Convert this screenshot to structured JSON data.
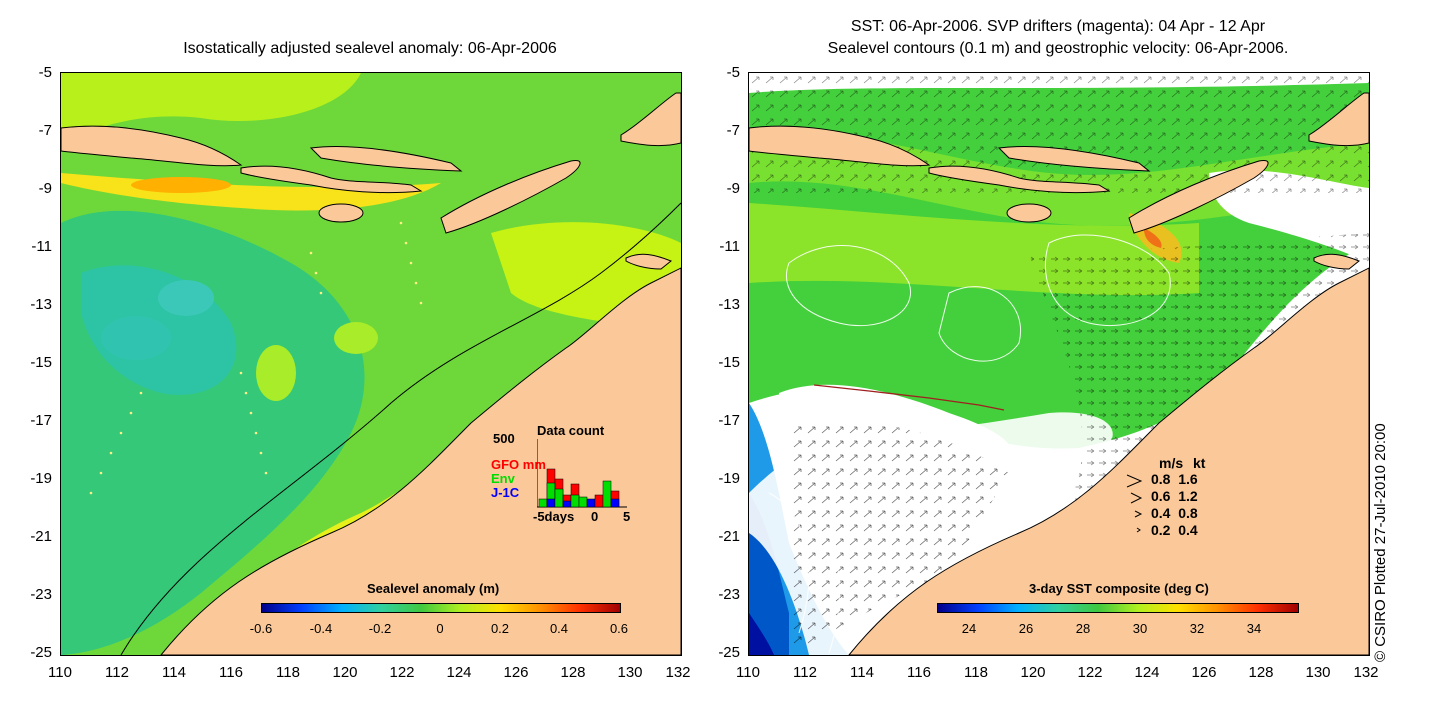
{
  "left_panel": {
    "title": "Isostatically adjusted sealevel anomaly: 06-Apr-2006",
    "y_ticks": [
      "-5",
      "-7",
      "-9",
      "-11",
      "-13",
      "-15",
      "-17",
      "-19",
      "-21",
      "-23",
      "-25"
    ],
    "x_ticks": [
      "110",
      "112",
      "114",
      "116",
      "118",
      "120",
      "122",
      "124",
      "126",
      "128",
      "130",
      "132"
    ],
    "colorbar_title": "Sealevel anomaly (m)",
    "colorbar_ticks": [
      "-0.6",
      "-0.4",
      "-0.2",
      "0",
      "0.2",
      "0.4",
      "0.6"
    ],
    "inset": {
      "title": "Data count",
      "y_max": "500",
      "series": [
        {
          "name": "GFO",
          "extra": "mm",
          "color": "#ff0000"
        },
        {
          "name": "Env",
          "color": "#00dd00"
        },
        {
          "name": "J-1C",
          "color": "#0000ff"
        }
      ],
      "x_labels": [
        "-5days",
        "0",
        "5"
      ]
    }
  },
  "right_panel": {
    "title_line1": "SST: 06-Apr-2006. SVP drifters (magenta): 04 Apr - 12 Apr",
    "title_line2": "Sealevel contours (0.1 m) and geostrophic velocity: 06-Apr-2006.",
    "y_ticks": [
      "-5",
      "-7",
      "-9",
      "-11",
      "-13",
      "-15",
      "-17",
      "-19",
      "-21",
      "-23",
      "-25"
    ],
    "x_ticks": [
      "110",
      "112",
      "114",
      "116",
      "118",
      "120",
      "122",
      "124",
      "126",
      "128",
      "130",
      "132"
    ],
    "colorbar_title": "3-day SST composite (deg C)",
    "colorbar_ticks": [
      "24",
      "26",
      "28",
      "30",
      "32",
      "34"
    ],
    "velocity_legend": {
      "header_ms": "m/s",
      "header_kt": "kt",
      "rows": [
        {
          "ms": "0.8",
          "kt": "1.6"
        },
        {
          "ms": "0.6",
          "kt": "1.2"
        },
        {
          "ms": "0.4",
          "kt": "0.8"
        },
        {
          "ms": "0.2",
          "kt": "0.4"
        }
      ]
    }
  },
  "credit": "© CSIRO Plotted 27-Jul-2010 20:00",
  "colors": {
    "land": "#fbc999",
    "sea_green": "#4ed43a",
    "sea_yellowgreen": "#bff21a",
    "sea_cyan": "#28c8a0"
  }
}
